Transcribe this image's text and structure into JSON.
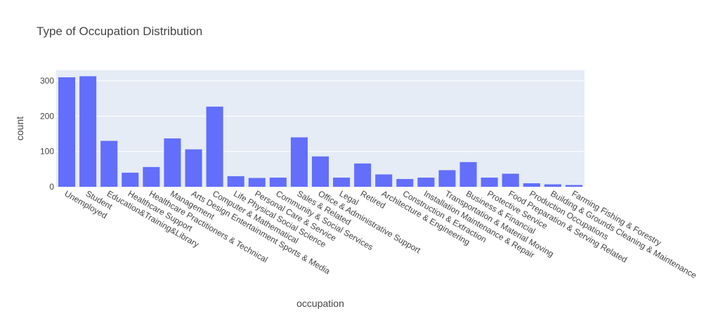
{
  "chart_data": {
    "type": "bar",
    "title": "Type of Occupation Distribution",
    "xlabel": "occupation",
    "ylabel": "count",
    "ylim": [
      0,
      330
    ],
    "yticks": [
      0,
      100,
      200,
      300
    ],
    "grid": true,
    "categories": [
      "Unemployed",
      "Student",
      "Education&Training&Library",
      "Healthcare Support",
      "Healthcare Practitioners & Technical",
      "Management",
      "Arts Design Entertainment Sports & Media",
      "Computer & Mathematical",
      "Life Physical Social Science",
      "Personal Care & Service",
      "Community & Social Services",
      "Sales & Related",
      "Office & Administrative Support",
      "Legal",
      "Retired",
      "Architecture & Engineering",
      "Construction & Extraction",
      "Installation Maintenance & Repair",
      "Transportation & Material Moving",
      "Business & Financial",
      "Protective Service",
      "Food Preparation & Serving Related",
      "Production Occupations",
      "Building & Grounds Cleaning & Maintenance",
      "Farming Fishing & Forestry"
    ],
    "values": [
      310,
      313,
      130,
      40,
      56,
      137,
      106,
      227,
      30,
      25,
      26,
      140,
      86,
      26,
      66,
      35,
      22,
      26,
      47,
      70,
      26,
      37,
      10,
      7,
      5
    ],
    "colors": {
      "bar": "#636efa",
      "plot_bg": "#e5ecf6",
      "grid": "#ffffff",
      "text": "#444444"
    }
  }
}
